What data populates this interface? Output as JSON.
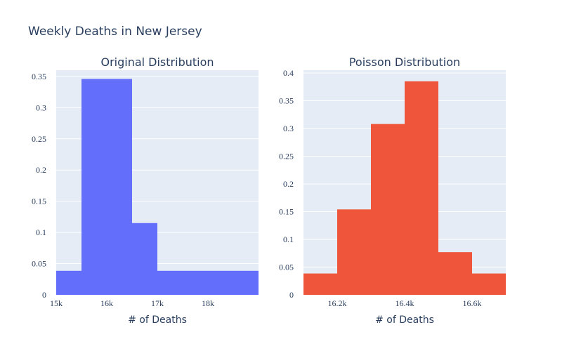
{
  "title": "Weekly Deaths in New Jersey",
  "chart_data": [
    {
      "type": "bar",
      "subtitle": "Original Distribution",
      "xlabel": "# of Deaths",
      "ylabel": "",
      "color": "#636efa",
      "plot_bg": "#e5ecf6",
      "xlim": [
        15000,
        19000
      ],
      "ylim": [
        0,
        0.36
      ],
      "xticks": [
        15000,
        16000,
        17000,
        18000
      ],
      "xtick_labels": [
        "15k",
        "16k",
        "17k",
        "18k"
      ],
      "yticks": [
        0,
        0.05,
        0.1,
        0.15,
        0.2,
        0.25,
        0.3,
        0.35
      ],
      "ytick_labels": [
        "0",
        "0.05",
        "0.1",
        "0.15",
        "0.2",
        "0.25",
        "0.3",
        "0.35"
      ],
      "bins": [
        {
          "x0": 15000,
          "x1": 15500,
          "value": 0.0385
        },
        {
          "x0": 15500,
          "x1": 16500,
          "value": 0.346
        },
        {
          "x0": 16500,
          "x1": 17000,
          "value": 0.115
        },
        {
          "x0": 17000,
          "x1": 19000,
          "value": 0.0385
        }
      ]
    },
    {
      "type": "bar",
      "subtitle": "Poisson Distribution",
      "xlabel": "# of Deaths",
      "ylabel": "",
      "color": "#ef553b",
      "plot_bg": "#e5ecf6",
      "xlim": [
        16100,
        16700
      ],
      "ylim": [
        0,
        0.405
      ],
      "xticks": [
        16200,
        16400,
        16600
      ],
      "xtick_labels": [
        "16.2k",
        "16.4k",
        "16.6k"
      ],
      "yticks": [
        0,
        0.05,
        0.1,
        0.15,
        0.2,
        0.25,
        0.3,
        0.35,
        0.4
      ],
      "ytick_labels": [
        "0",
        "0.05",
        "0.1",
        "0.15",
        "0.2",
        "0.25",
        "0.3",
        "0.35",
        "0.4"
      ],
      "bins": [
        {
          "x0": 16100,
          "x1": 16200,
          "value": 0.0385
        },
        {
          "x0": 16200,
          "x1": 16300,
          "value": 0.154
        },
        {
          "x0": 16300,
          "x1": 16400,
          "value": 0.308
        },
        {
          "x0": 16400,
          "x1": 16500,
          "value": 0.385
        },
        {
          "x0": 16500,
          "x1": 16600,
          "value": 0.077
        },
        {
          "x0": 16600,
          "x1": 16700,
          "value": 0.0385
        }
      ]
    }
  ]
}
